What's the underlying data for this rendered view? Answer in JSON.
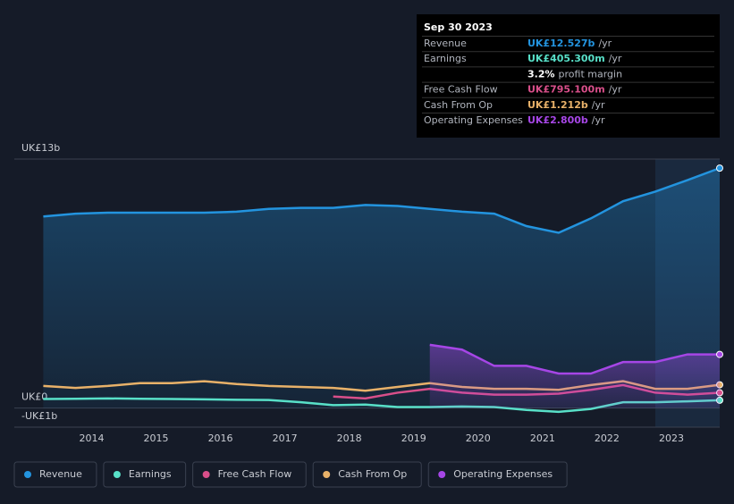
{
  "chart_data": {
    "type": "line",
    "x": [
      2013.25,
      2013.75,
      2014.25,
      2014.75,
      2015.25,
      2015.75,
      2016.25,
      2016.75,
      2017.25,
      2017.75,
      2018.25,
      2018.75,
      2019.25,
      2019.75,
      2020.25,
      2020.75,
      2021.25,
      2021.75,
      2022.25,
      2022.75,
      2023.25,
      2023.75
    ],
    "xlim": [
      2012.8,
      2023.75
    ],
    "xticks": [
      2014,
      2015,
      2016,
      2017,
      2018,
      2019,
      2020,
      2021,
      2022,
      2023
    ],
    "ylim": [
      -1,
      13
    ],
    "yticks": [
      {
        "value": 13,
        "label": "UK£13b"
      },
      {
        "value": 0,
        "label": "UK£0"
      },
      {
        "value": -1,
        "label": "-UK£1b"
      }
    ],
    "series": [
      {
        "name": "Revenue",
        "color": "#2394df",
        "area": true,
        "values": [
          10.0,
          10.15,
          10.2,
          10.2,
          10.2,
          10.2,
          10.25,
          10.4,
          10.45,
          10.45,
          10.6,
          10.55,
          10.4,
          10.25,
          10.15,
          9.5,
          9.15,
          9.9,
          10.8,
          11.3,
          11.9,
          12.527
        ]
      },
      {
        "name": "Earnings",
        "color": "#58e0c8",
        "area": false,
        "values": [
          0.47,
          0.48,
          0.5,
          0.48,
          0.47,
          0.45,
          0.43,
          0.42,
          0.3,
          0.15,
          0.18,
          0.05,
          0.05,
          0.08,
          0.05,
          -0.1,
          -0.2,
          -0.05,
          0.3,
          0.3,
          0.35,
          0.405
        ]
      },
      {
        "name": "Free Cash Flow",
        "color": "#d94f8a",
        "area": false,
        "values": [
          null,
          null,
          null,
          null,
          null,
          null,
          null,
          null,
          null,
          0.6,
          0.5,
          0.8,
          1.0,
          0.8,
          0.7,
          0.7,
          0.75,
          0.95,
          1.2,
          0.8,
          0.7,
          0.795
        ]
      },
      {
        "name": "Cash From Op",
        "color": "#e8b169",
        "area": false,
        "values": [
          1.15,
          1.05,
          1.15,
          1.3,
          1.3,
          1.4,
          1.25,
          1.15,
          1.1,
          1.05,
          0.9,
          1.1,
          1.3,
          1.1,
          1.0,
          1.0,
          0.95,
          1.2,
          1.4,
          1.0,
          1.0,
          1.212
        ]
      },
      {
        "name": "Operating Expenses",
        "color": "#a646e6",
        "area": true,
        "values": [
          null,
          null,
          null,
          null,
          null,
          null,
          null,
          null,
          null,
          null,
          null,
          null,
          3.3,
          3.05,
          2.2,
          2.2,
          1.8,
          1.8,
          2.4,
          2.4,
          2.8,
          2.8
        ]
      }
    ],
    "tooltip": {
      "date": "Sep 30 2023",
      "rows": [
        {
          "label": "Revenue",
          "value": "UK£12.527b",
          "suffix": "/yr",
          "color": "#2394df"
        },
        {
          "label": "Earnings",
          "value": "UK£405.300m",
          "suffix": "/yr",
          "color": "#58e0c8"
        },
        {
          "label": "",
          "value": "3.2%",
          "suffix": "profit margin",
          "color": "#ffffff"
        },
        {
          "label": "Free Cash Flow",
          "value": "UK£795.100m",
          "suffix": "/yr",
          "color": "#d94f8a"
        },
        {
          "label": "Cash From Op",
          "value": "UK£1.212b",
          "suffix": "/yr",
          "color": "#e8b169"
        },
        {
          "label": "Operating Expenses",
          "value": "UK£2.800b",
          "suffix": "/yr",
          "color": "#a646e6"
        }
      ]
    }
  }
}
